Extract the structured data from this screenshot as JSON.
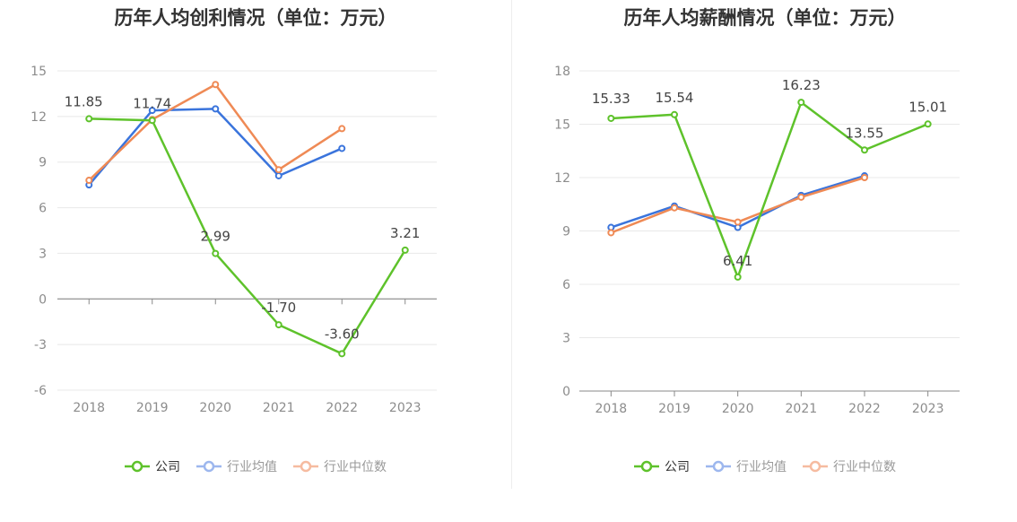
{
  "legend": {
    "company": "公司",
    "industry_avg": "行业均值",
    "industry_median": "行业中位数"
  },
  "colors": {
    "company": "#5ec22b",
    "industry_avg": "#3a74dc",
    "industry_median": "#ef8a55",
    "legend_company": "#5ec22b",
    "legend_avg": "#9db7ee",
    "legend_median": "#f6bba0"
  },
  "chart_data": [
    {
      "type": "line",
      "title": "历年人均创利情况（单位：万元）",
      "categories": [
        "2018",
        "2019",
        "2020",
        "2021",
        "2022",
        "2023"
      ],
      "ylim": [
        -6,
        15
      ],
      "yticks": [
        15,
        12,
        9,
        6,
        3,
        0,
        -3,
        -6
      ],
      "ytick_labels": [
        "15",
        "12",
        "9",
        "6",
        "3",
        "0",
        "-3",
        "-6"
      ],
      "series": [
        {
          "key": "company",
          "name": "公司",
          "values": [
            11.85,
            11.74,
            2.99,
            -1.7,
            -3.6,
            3.21
          ],
          "labels": [
            "11.85",
            "11.74",
            "2.99",
            "-1.70",
            "-3.60",
            "3.21"
          ]
        },
        {
          "key": "industry_avg",
          "name": "行业均值",
          "values": [
            7.5,
            12.4,
            12.5,
            8.1,
            9.9,
            null
          ]
        },
        {
          "key": "industry_median",
          "name": "行业中位数",
          "values": [
            7.8,
            11.8,
            14.1,
            8.5,
            11.2,
            null
          ]
        }
      ]
    },
    {
      "type": "line",
      "title": "历年人均薪酬情况（单位：万元）",
      "categories": [
        "2018",
        "2019",
        "2020",
        "2021",
        "2022",
        "2023"
      ],
      "ylim": [
        0,
        18
      ],
      "yticks": [
        18,
        15,
        12,
        9,
        6,
        3,
        0
      ],
      "ytick_labels": [
        "18",
        "15",
        "12",
        "9",
        "6",
        "3",
        "0"
      ],
      "series": [
        {
          "key": "company",
          "name": "公司",
          "values": [
            15.33,
            15.54,
            6.41,
            16.23,
            13.55,
            15.01
          ],
          "labels": [
            "15.33",
            "15.54",
            "6.41",
            "16.23",
            "13.55",
            "15.01"
          ]
        },
        {
          "key": "industry_avg",
          "name": "行业均值",
          "values": [
            9.2,
            10.4,
            9.2,
            11.0,
            12.1,
            null
          ]
        },
        {
          "key": "industry_median",
          "name": "行业中位数",
          "values": [
            8.9,
            10.3,
            9.5,
            10.9,
            12.0,
            null
          ]
        }
      ]
    }
  ]
}
